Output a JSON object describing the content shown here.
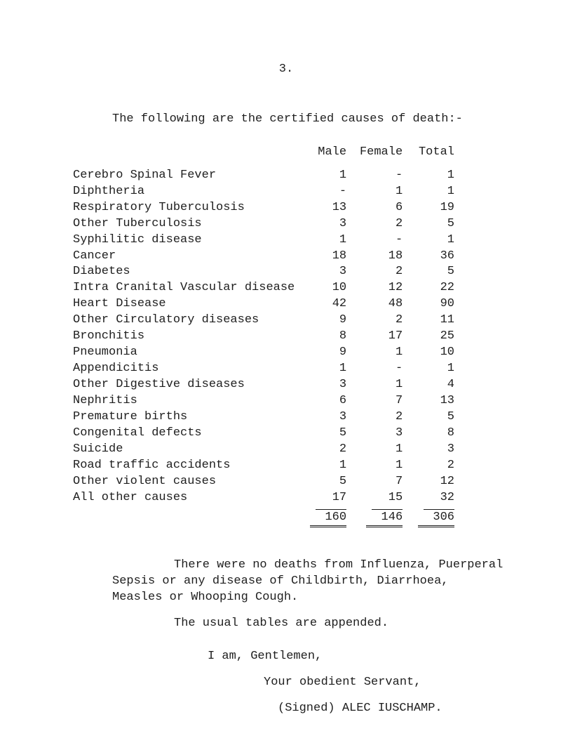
{
  "page_number": "3.",
  "lead": "The following are the certified causes of death:-",
  "columns": {
    "male": "Male",
    "female": "Female",
    "total": "Total"
  },
  "rows": [
    {
      "label": "Cerebro Spinal Fever",
      "m": "1",
      "f": "-",
      "t": "1"
    },
    {
      "label": "Diphtheria",
      "m": "-",
      "f": "1",
      "t": "1"
    },
    {
      "label": "Respiratory Tuberculosis",
      "m": "13",
      "f": "6",
      "t": "19"
    },
    {
      "label": "Other Tuberculosis",
      "m": "3",
      "f": "2",
      "t": "5"
    },
    {
      "label": "Syphilitic disease",
      "m": "1",
      "f": "-",
      "t": "1"
    },
    {
      "label": "Cancer",
      "m": "18",
      "f": "18",
      "t": "36"
    },
    {
      "label": "Diabetes",
      "m": "3",
      "f": "2",
      "t": "5"
    },
    {
      "label": "Intra Cranital Vascular disease",
      "m": "10",
      "f": "12",
      "t": "22"
    },
    {
      "label": "Heart Disease",
      "m": "42",
      "f": "48",
      "t": "90"
    },
    {
      "label": "Other Circulatory diseases",
      "m": "9",
      "f": "2",
      "t": "11"
    },
    {
      "label": "Bronchitis",
      "m": "8",
      "f": "17",
      "t": "25"
    },
    {
      "label": "Pneumonia",
      "m": "9",
      "f": "1",
      "t": "10"
    },
    {
      "label": "Appendicitis",
      "m": "1",
      "f": "-",
      "t": "1"
    },
    {
      "label": "Other Digestive diseases",
      "m": "3",
      "f": "1",
      "t": "4"
    },
    {
      "label": "Nephritis",
      "m": "6",
      "f": "7",
      "t": "13"
    },
    {
      "label": "Premature births",
      "m": "3",
      "f": "2",
      "t": "5"
    },
    {
      "label": "Congenital defects",
      "m": "5",
      "f": "3",
      "t": "8"
    },
    {
      "label": "Suicide",
      "m": "2",
      "f": "1",
      "t": "3"
    },
    {
      "label": "Road traffic accidents",
      "m": "1",
      "f": "1",
      "t": "2"
    },
    {
      "label": "Other violent causes",
      "m": "5",
      "f": "7",
      "t": "12"
    },
    {
      "label": "All other causes",
      "m": "17",
      "f": "15",
      "t": "32"
    }
  ],
  "totals": {
    "m": "160",
    "f": "146",
    "t": "306"
  },
  "para1": "There were no deaths from Influenza, Puerperal Sepsis or any disease of Childbirth, Diarrhoea, Measles or Whooping Cough.",
  "para2": "The usual tables are appended.",
  "closing": "I am, Gentlemen,",
  "obedient": "Your obedient Servant,",
  "signed": "(Signed) ALEC IUSCHAMP."
}
